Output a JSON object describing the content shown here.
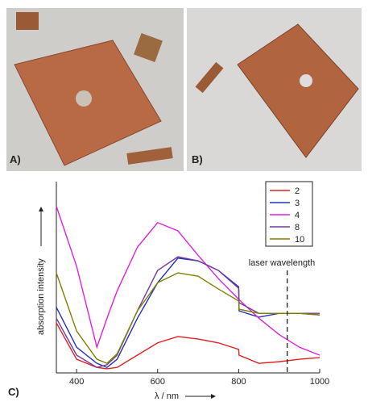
{
  "panels": {
    "a": "A)",
    "b": "B)",
    "c": "C)"
  },
  "chart_data": {
    "type": "line",
    "xlabel": "λ / nm",
    "ylabel": "absorption intensity",
    "annotation": {
      "text": "laser wavelength",
      "x": 920
    },
    "x": [
      350,
      400,
      450,
      475,
      500,
      550,
      600,
      650,
      700,
      750,
      800,
      801,
      850,
      900,
      950,
      1000
    ],
    "series": [
      {
        "name": "2",
        "color": "#e02020",
        "values": [
          1.83,
          0.5,
          0.2,
          0.15,
          0.2,
          0.65,
          1.1,
          1.33,
          1.24,
          1.1,
          0.86,
          0.65,
          0.35,
          0.41,
          0.5,
          0.56
        ]
      },
      {
        "name": "3",
        "color": "#2030c0",
        "values": [
          2.4,
          0.94,
          0.35,
          0.2,
          0.5,
          2.0,
          3.3,
          4.2,
          4.1,
          3.75,
          3.15,
          2.27,
          2.04,
          2.18,
          2.18,
          2.12
        ]
      },
      {
        "name": "4",
        "color": "#e020e0",
        "values": [
          6.1,
          3.9,
          0.94,
          2.0,
          3.0,
          4.6,
          5.5,
          5.2,
          4.3,
          3.45,
          2.7,
          2.68,
          2.0,
          1.4,
          0.94,
          0.65
        ]
      },
      {
        "name": "8",
        "color": "#7a3a9a",
        "values": [
          2.0,
          0.65,
          0.2,
          0.3,
          0.65,
          2.27,
          3.75,
          4.25,
          4.1,
          3.75,
          3.1,
          2.57,
          2.18,
          2.18,
          2.18,
          2.18
        ]
      },
      {
        "name": "10",
        "color": "#808000",
        "values": [
          3.66,
          1.53,
          0.5,
          0.35,
          0.7,
          2.27,
          3.3,
          3.66,
          3.54,
          3.07,
          2.63,
          2.33,
          2.18,
          2.18,
          2.18,
          2.12
        ]
      }
    ],
    "xlim": [
      350,
      1000
    ],
    "xticks": [
      400,
      600,
      800,
      1000
    ],
    "ylim": [
      0,
      7
    ]
  }
}
